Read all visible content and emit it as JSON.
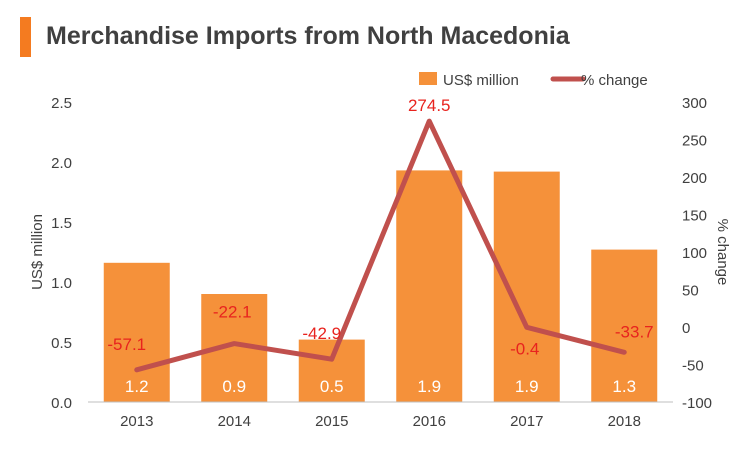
{
  "title": "Merchandise Imports from North Macedonia",
  "colors": {
    "accent": "#F5822A",
    "bar": "#F5913A",
    "line": "#C0504D",
    "label_red": "#E8231E",
    "title_bar": "#F47B20"
  },
  "chart_data": {
    "type": "bar",
    "categories": [
      "2013",
      "2014",
      "2015",
      "2016",
      "2017",
      "2018"
    ],
    "series": [
      {
        "name": "US$ million",
        "type": "bar",
        "axis": "left",
        "values": [
          1.16,
          0.9,
          0.52,
          1.93,
          1.92,
          1.27
        ],
        "labels": [
          "1.2",
          "0.9",
          "0.5",
          "1.9",
          "1.9",
          "1.3"
        ]
      },
      {
        "name": "% change",
        "type": "line",
        "axis": "right",
        "values": [
          -57.1,
          -22.1,
          -42.9,
          274.5,
          -0.4,
          -33.7
        ],
        "labels": [
          "-57.1",
          "-22.1",
          "-42.9",
          "274.5",
          "-0.4",
          "-33.7"
        ]
      }
    ],
    "ylabel": "US$ million",
    "y2label": "% change",
    "ylim": [
      0,
      2.5
    ],
    "y2lim": [
      -100,
      300
    ],
    "yticks": [
      "0.0",
      "0.5",
      "1.0",
      "1.5",
      "2.0",
      "2.5"
    ],
    "y2ticks": [
      "-100",
      "-50",
      "0",
      "50",
      "100",
      "150",
      "200",
      "250",
      "300"
    ],
    "legend_position": "top-right",
    "grid": false
  }
}
